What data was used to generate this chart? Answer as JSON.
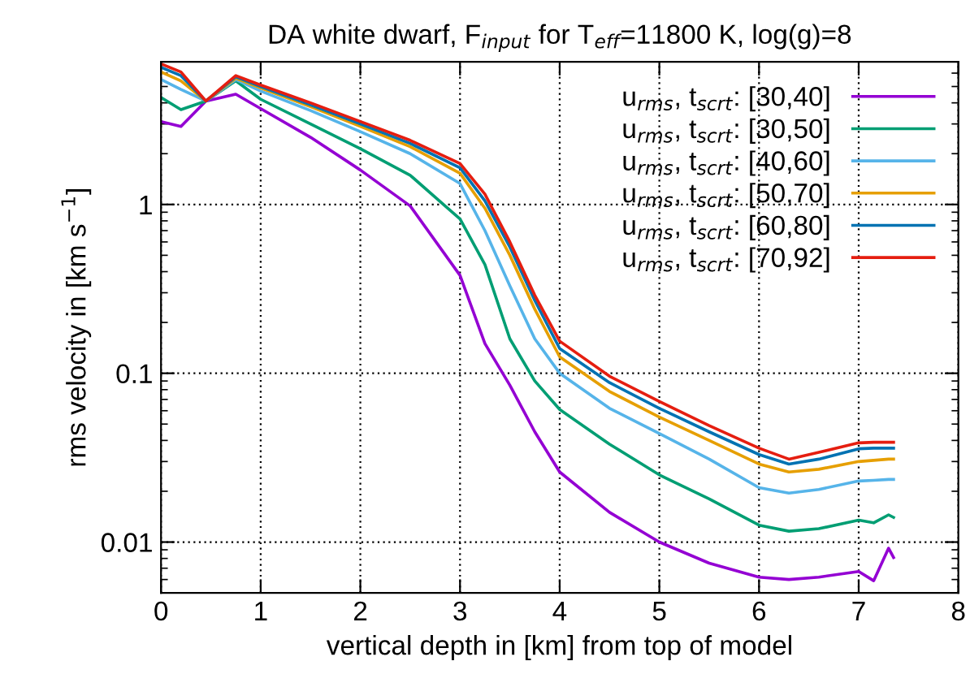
{
  "chart_data": {
    "type": "line",
    "title": "DA white dwarf, F$_{input}$ for T$_{eff}$=11800 K, log(g)=8",
    "xlabel": "vertical depth in [km] from top of model",
    "ylabel": "rms velocity in [km s$^{−1}$]",
    "x": [
      0,
      0.2,
      0.45,
      0.75,
      1,
      1.5,
      2,
      2.5,
      3,
      3.25,
      3.5,
      3.75,
      4,
      4.5,
      5,
      5.5,
      6,
      6.3,
      6.6,
      7,
      7.15,
      7.3,
      7.35
    ],
    "series": [
      {
        "name": "u$_{rms}$, t$_{scrt}$: [30,40]",
        "color": "#9400d3",
        "values": [
          3.1,
          2.9,
          4.1,
          4.5,
          3.7,
          2.5,
          1.6,
          0.98,
          0.38,
          0.15,
          0.085,
          0.045,
          0.026,
          0.015,
          0.01,
          0.0075,
          0.0062,
          0.006,
          0.0062,
          0.0067,
          0.0059,
          0.0092,
          0.0081
        ]
      },
      {
        "name": "u$_{rms}$, t$_{scrt}$: [30,50]",
        "color": "#009e73",
        "values": [
          4.3,
          3.65,
          4.1,
          5.4,
          4.2,
          3.0,
          2.14,
          1.49,
          0.82,
          0.44,
          0.16,
          0.09,
          0.061,
          0.038,
          0.025,
          0.018,
          0.0126,
          0.0116,
          0.012,
          0.0135,
          0.013,
          0.0145,
          0.014
        ]
      },
      {
        "name": "u$_{rms}$, t$_{scrt}$: [40,60]",
        "color": "#56b4e9",
        "values": [
          5.5,
          4.8,
          4.1,
          5.5,
          4.7,
          3.6,
          2.7,
          2.0,
          1.33,
          0.7,
          0.33,
          0.16,
          0.1,
          0.062,
          0.044,
          0.031,
          0.021,
          0.0195,
          0.0205,
          0.023,
          0.0232,
          0.0235,
          0.0235
        ]
      },
      {
        "name": "u$_{rms}$, t$_{scrt}$: [50,70]",
        "color": "#e69f00",
        "values": [
          6.1,
          5.4,
          4.1,
          5.6,
          4.9,
          3.8,
          2.9,
          2.2,
          1.53,
          0.95,
          0.5,
          0.24,
          0.125,
          0.078,
          0.055,
          0.04,
          0.029,
          0.026,
          0.027,
          0.03,
          0.0305,
          0.031,
          0.031
        ]
      },
      {
        "name": "u$_{rms}$, t$_{scrt}$: [60,80]",
        "color": "#0072b2",
        "values": [
          6.5,
          5.8,
          4.1,
          5.7,
          5.0,
          3.9,
          3.0,
          2.3,
          1.65,
          1.05,
          0.56,
          0.27,
          0.14,
          0.088,
          0.062,
          0.045,
          0.033,
          0.029,
          0.031,
          0.0357,
          0.036,
          0.036,
          0.036
        ]
      },
      {
        "name": "u$_{rms}$, t$_{scrt}$: [70,92]",
        "color": "#e51e10",
        "values": [
          6.8,
          6.1,
          4.1,
          5.8,
          5.1,
          4.0,
          3.1,
          2.4,
          1.75,
          1.15,
          0.6,
          0.29,
          0.155,
          0.096,
          0.068,
          0.049,
          0.036,
          0.031,
          0.034,
          0.0387,
          0.039,
          0.039,
          0.039
        ]
      }
    ],
    "log": "y",
    "xlim": [
      0,
      8
    ],
    "ylim": [
      0.005,
      7
    ],
    "xticks": [
      0,
      1,
      2,
      3,
      4,
      5,
      6,
      7,
      8
    ],
    "yticks": [
      0.01,
      0.1,
      1
    ],
    "grid": true,
    "legend": "top right",
    "marker": "none",
    "line_style": "solid"
  }
}
